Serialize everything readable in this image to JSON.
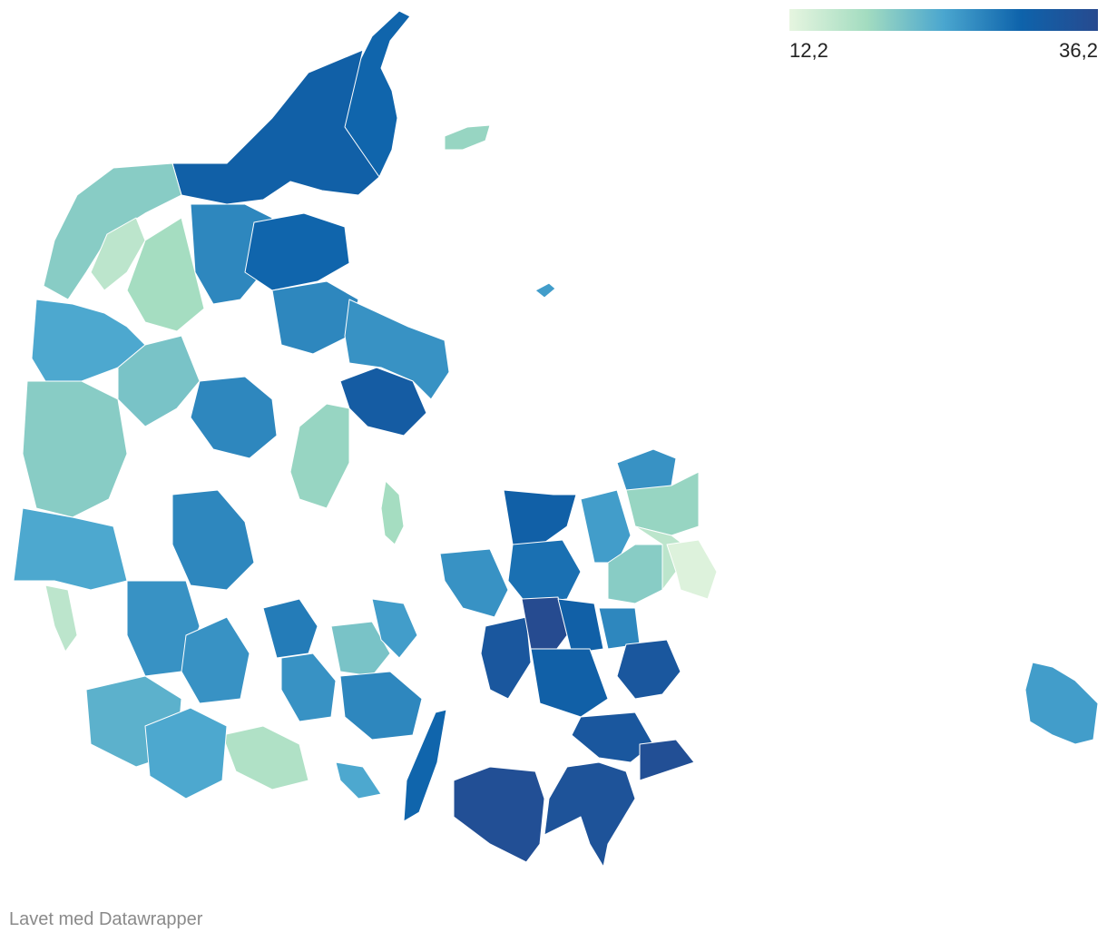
{
  "legend": {
    "min_label": "12,2",
    "max_label": "36,2",
    "min_value": 12.2,
    "max_value": 36.2,
    "colors": [
      "#e6f5e0",
      "#a3dcc0",
      "#4aa6cf",
      "#0e63ab",
      "#274a8f"
    ]
  },
  "credit": "Lavet med Datawrapper",
  "regions": [
    {
      "name": "r-nordjylland-top",
      "value": 30
    },
    {
      "name": "r-nordjylland-west",
      "value": 31
    },
    {
      "name": "r-thy",
      "value": 20
    },
    {
      "name": "r-mors",
      "value": 16
    },
    {
      "name": "r-salling",
      "value": 18
    },
    {
      "name": "r-himmerland",
      "value": 27
    },
    {
      "name": "r-mariager",
      "value": 30
    },
    {
      "name": "r-randers",
      "value": 27
    },
    {
      "name": "r-djursland",
      "value": 26
    },
    {
      "name": "r-aarhus",
      "value": 32
    },
    {
      "name": "r-samso",
      "value": 18
    },
    {
      "name": "r-holstebro",
      "value": 24
    },
    {
      "name": "r-herning",
      "value": 21
    },
    {
      "name": "r-ringkobing",
      "value": 20
    },
    {
      "name": "r-silkeborg",
      "value": 27
    },
    {
      "name": "r-horsens",
      "value": 19
    },
    {
      "name": "r-vejle",
      "value": 27
    },
    {
      "name": "r-esbjerg",
      "value": 24
    },
    {
      "name": "r-fano",
      "value": 16
    },
    {
      "name": "r-kolding",
      "value": 26
    },
    {
      "name": "r-haderslev",
      "value": 26
    },
    {
      "name": "r-tonder",
      "value": 23
    },
    {
      "name": "r-sonderborg",
      "value": 17
    },
    {
      "name": "r-aabenraa",
      "value": 24
    },
    {
      "name": "r-fyn-north",
      "value": 28
    },
    {
      "name": "r-fyn-west",
      "value": 26
    },
    {
      "name": "r-odense",
      "value": 21
    },
    {
      "name": "r-fyn-east",
      "value": 25
    },
    {
      "name": "r-svendborg",
      "value": 27
    },
    {
      "name": "r-langeland",
      "value": 30
    },
    {
      "name": "r-aero",
      "value": 24
    },
    {
      "name": "r-kalundborg",
      "value": 26
    },
    {
      "name": "r-odsherred",
      "value": 31
    },
    {
      "name": "r-holbaek",
      "value": 29
    },
    {
      "name": "r-slagelse",
      "value": 33
    },
    {
      "name": "r-sorø",
      "value": 36
    },
    {
      "name": "r-ringsted",
      "value": 31
    },
    {
      "name": "r-naestved",
      "value": 31
    },
    {
      "name": "r-koge",
      "value": 27
    },
    {
      "name": "r-stevns",
      "value": 33
    },
    {
      "name": "r-vordingborg",
      "value": 33
    },
    {
      "name": "r-mon",
      "value": 35
    },
    {
      "name": "r-lolland",
      "value": 35
    },
    {
      "name": "r-guldborgsund",
      "value": 34
    },
    {
      "name": "r-nordsjaelland",
      "value": 26
    },
    {
      "name": "r-hillerod",
      "value": 19
    },
    {
      "name": "r-hornsherred",
      "value": 25
    },
    {
      "name": "r-roskilde",
      "value": 20
    },
    {
      "name": "r-storkbh",
      "value": 16
    },
    {
      "name": "r-kbh",
      "value": 13
    },
    {
      "name": "r-laeso",
      "value": 19
    },
    {
      "name": "r-anholt",
      "value": 25
    },
    {
      "name": "r-bornholm",
      "value": 25
    }
  ]
}
